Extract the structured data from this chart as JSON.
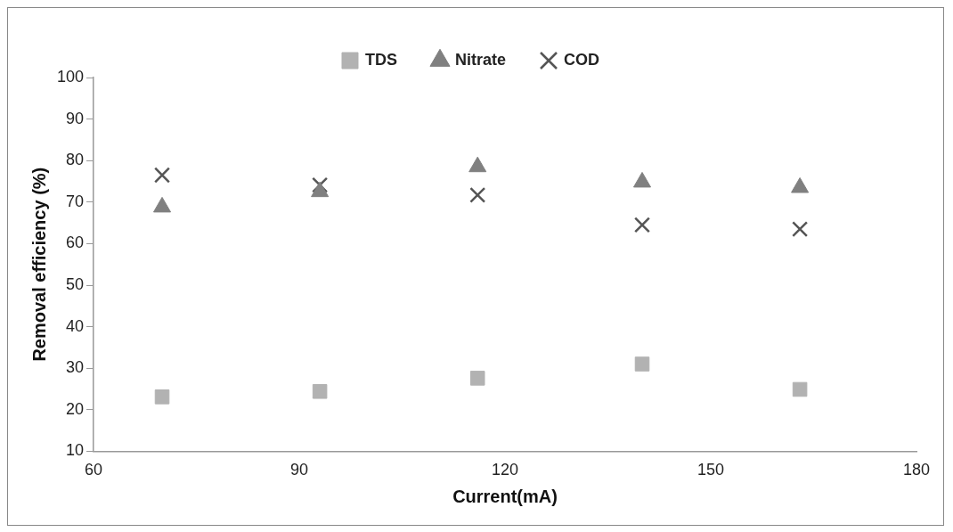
{
  "chart_data": {
    "type": "scatter",
    "xlabel": "Current(mA)",
    "ylabel": "Removal efficiency (%)",
    "x": [
      70,
      93,
      116,
      140,
      163
    ],
    "series": [
      {
        "name": "TDS",
        "color": "#b2b2b2",
        "marker": "square",
        "values": [
          23.1,
          24.4,
          27.6,
          31.0,
          24.9
        ]
      },
      {
        "name": "Nitrate",
        "color": "#808080",
        "marker": "triangle",
        "values": [
          68.8,
          72.5,
          78.5,
          74.8,
          73.5
        ]
      },
      {
        "name": "COD",
        "color": "#555555",
        "marker": "cross",
        "values": [
          76.5,
          74.1,
          71.7,
          64.5,
          63.5
        ]
      }
    ],
    "xlim": [
      60,
      180
    ],
    "xticks": [
      60,
      90,
      120,
      150,
      180
    ],
    "ylim": [
      10,
      100
    ],
    "yticks": [
      10,
      20,
      30,
      40,
      50,
      60,
      70,
      80,
      90,
      100
    ],
    "grid": false,
    "legend": "top"
  }
}
